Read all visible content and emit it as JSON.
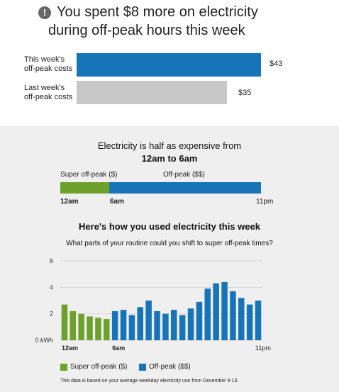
{
  "headline": {
    "icon": "exclamation-icon",
    "line1": "You spent $8 more on electricity",
    "line2": "during off-peak hours this week"
  },
  "comparison": {
    "this_week": {
      "label_line1": "This week's",
      "label_line2": "off-peak costs",
      "value_label": "$43",
      "value": 43,
      "color": "#1874b8"
    },
    "last_week": {
      "label_line1": "Last week's",
      "label_line2": "off-peak costs",
      "value_label": "$35",
      "value": 35,
      "color": "#c8c8c8"
    }
  },
  "timeline": {
    "title_line1": "Electricity is half as expensive from",
    "title_line2": "12am to 6am",
    "super_label": "Super off-peak ($)",
    "offpeak_label": "Off-peak ($$)",
    "tick_start": "12am",
    "tick_mid": "6am",
    "tick_end": "11pm"
  },
  "usage": {
    "title": "Here's how you used electricity this week",
    "subtitle": "What parts of your routine could you shift to super off-peak times?",
    "footnote": "This data is based on your average weekday electricity use from December 9-13."
  },
  "colors": {
    "super_offpeak": "#6ea12b",
    "offpeak": "#1874b8",
    "cost_this_week": "#1874b8",
    "cost_last_week": "#c8c8c8"
  },
  "chart_data": {
    "type": "bar",
    "title": "Here's how you used electricity this week",
    "ylabel": "",
    "ylim": [
      0,
      6
    ],
    "y_ticks": [
      "0 kWh",
      "2",
      "4",
      "6"
    ],
    "x_tick_labels": [
      "12am",
      "6am",
      "11pm"
    ],
    "legend": [
      "Super off-peak ($)",
      "Off-peak ($$)"
    ],
    "legend_placement": "bottom",
    "grid": true,
    "series": [
      {
        "name": "Super off-peak ($)",
        "hours": [
          0,
          1,
          2,
          3,
          4,
          5
        ],
        "values": [
          2.7,
          2.2,
          2.0,
          1.8,
          1.7,
          1.6
        ]
      },
      {
        "name": "Off-peak ($$)",
        "hours": [
          6,
          7,
          8,
          9,
          10,
          11,
          12,
          13,
          14,
          15,
          16,
          17,
          18,
          19,
          20,
          21,
          22,
          23
        ],
        "values": [
          2.2,
          2.3,
          1.9,
          2.5,
          3.0,
          2.2,
          2.0,
          2.3,
          1.9,
          2.4,
          2.9,
          3.9,
          4.3,
          4.4,
          3.7,
          3.2,
          2.7,
          3.0
        ]
      }
    ]
  }
}
